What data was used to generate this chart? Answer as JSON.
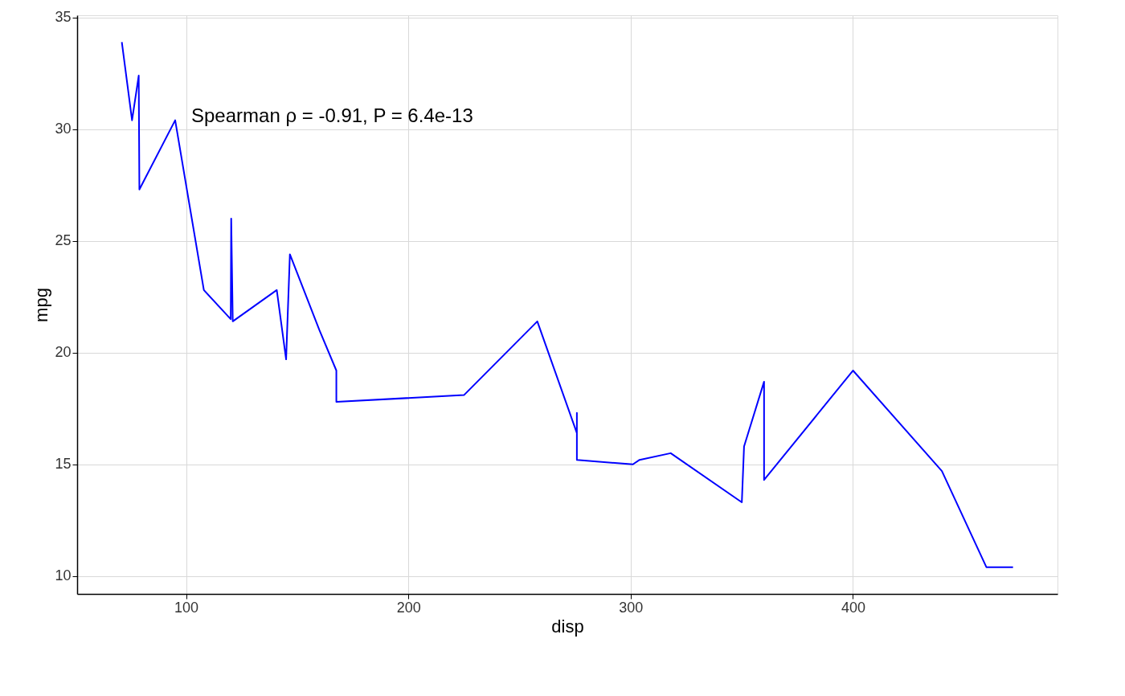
{
  "chart_data": {
    "type": "line",
    "xlabel": "disp",
    "ylabel": "mpg",
    "x": [
      71.1,
      75.7,
      78.7,
      79.0,
      95.1,
      108.0,
      120.1,
      120.3,
      121.0,
      140.8,
      145.0,
      146.7,
      160.0,
      160.0,
      167.6,
      167.6,
      225.0,
      258.0,
      275.8,
      275.8,
      275.8,
      301.0,
      304.0,
      318.0,
      350.0,
      351.0,
      360.0,
      360.0,
      400.0,
      440.0,
      460.0,
      472.0
    ],
    "series": [
      {
        "color": "#0000ff",
        "values": [
          33.9,
          30.4,
          32.4,
          27.3,
          30.4,
          22.8,
          21.5,
          26.0,
          21.4,
          22.8,
          19.7,
          24.4,
          21.0,
          21.0,
          19.2,
          17.8,
          18.1,
          21.4,
          16.4,
          17.3,
          15.2,
          15.0,
          15.2,
          15.5,
          13.3,
          15.8,
          18.7,
          14.3,
          19.2,
          14.7,
          10.4,
          10.4
        ]
      }
    ],
    "xlim": [
      51.0,
      492.0
    ],
    "xticks": [
      100,
      200,
      300,
      400
    ],
    "ylim": [
      9.2,
      35.1
    ],
    "yticks": [
      10,
      15,
      20,
      25,
      30,
      35
    ],
    "grid": true,
    "marker": "none",
    "line_style": "solid",
    "annotations": [
      "Spearman ρ = -0.91, P = 6.4e-13"
    ]
  }
}
